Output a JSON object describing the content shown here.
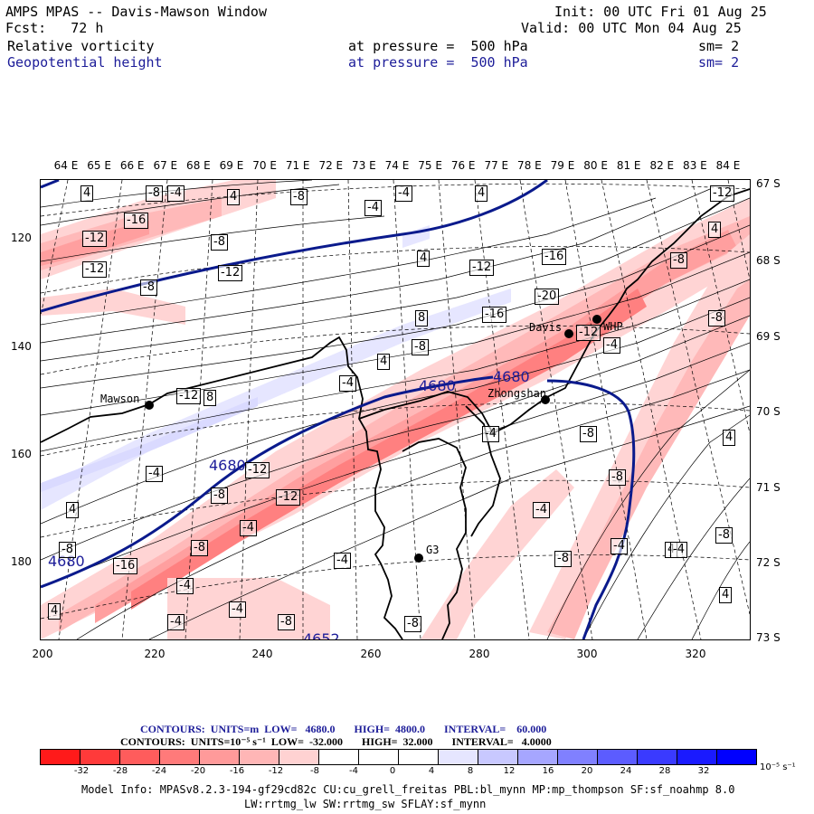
{
  "header": {
    "title": "AMPS MPAS -- Davis-Mawson Window",
    "init": "Init: 00 UTC Fri 01 Aug 25",
    "fcst": "Fcst:   72 h",
    "valid": "Valid: 00 UTC Mon 04 Aug 25",
    "field1": {
      "name": "Relative vorticity",
      "level": "at pressure =  500 hPa",
      "sm": "sm= 2"
    },
    "field2": {
      "name": "Geopotential height",
      "level": "at pressure =  500 hPa",
      "sm": "sm= 2"
    }
  },
  "axes": {
    "lon_labels": [
      "64 E",
      "65 E",
      "66 E",
      "67 E",
      "68 E",
      "69 E",
      "70 E",
      "71 E",
      "72 E",
      "73 E",
      "74 E",
      "75 E",
      "76 E",
      "77 E",
      "78 E",
      "79 E",
      "80 E",
      "81 E",
      "82 E",
      "83 E",
      "84 E"
    ],
    "x_ticks": [
      "200",
      "220",
      "240",
      "260",
      "280",
      "300",
      "320"
    ],
    "y_ticks": [
      "120",
      "140",
      "160",
      "180"
    ],
    "lat_labels": [
      "67 S",
      "68 S",
      "69 S",
      "70 S",
      "71 S",
      "72 S",
      "73 S"
    ]
  },
  "map": {
    "stations": [
      {
        "name": "Mawson"
      },
      {
        "name": "Davis"
      },
      {
        "name": "WHP"
      },
      {
        "name": "Zhongshan"
      },
      {
        "name": "G3"
      }
    ],
    "height_contour_labels": [
      "4680",
      "4680",
      "4680",
      "4680",
      "4652"
    ],
    "vorticity_labels": [
      "4",
      "-4",
      "-8",
      "-4",
      "4",
      "-12",
      "-16",
      "-8",
      "-12",
      "-8",
      "-12",
      "-12",
      "-8",
      "-8",
      "4",
      "4",
      "-12",
      "-20",
      "-16",
      "8",
      "-8",
      "4",
      "-16",
      "4",
      "-4",
      "-4",
      "-4",
      "8",
      "-12",
      "-12",
      "-8",
      "4",
      "-12",
      "-8",
      "-4",
      "-8",
      "-16",
      "-4",
      "-8",
      "-8",
      "-8",
      "-4",
      "4",
      "-4",
      "-8",
      "4",
      "-4",
      "-4",
      "-4",
      "-4",
      "-8",
      "-8",
      "-8",
      "4",
      "-12",
      "-4",
      "-4",
      "-8",
      "4"
    ]
  },
  "info": {
    "contours1": "CONTOURS:  UNITS=m  LOW=   4680.0       HIGH=  4800.0       INTERVAL=    60.000",
    "contours2": "CONTOURS:  UNITS=10⁻⁵ s⁻¹  LOW=  -32.000       HIGH=  32.000       INTERVAL=   4.0000",
    "model1": "Model Info: MPASv8.2.3-194-gf29cd82c CU:cu_grell_freitas PBL:bl_mynn MP:mp_thompson SF:sf_noahmp 8.0",
    "model2": "LW:rrtmg_lw SW:rrtmg_sw SFLAY:sf_mynn"
  },
  "colorbar": {
    "labels": [
      "-32",
      "-28",
      "-24",
      "-20",
      "-16",
      "-12",
      "-8",
      "-4",
      "0",
      "4",
      "8",
      "12",
      "16",
      "20",
      "24",
      "28",
      "32"
    ],
    "unit": "10⁻⁵ s⁻¹",
    "colors": [
      "#ff1a1a",
      "#ff3a3a",
      "#ff5c5c",
      "#ff7a7a",
      "#ff9a9a",
      "#ffb6b6",
      "#ffd2d2",
      "#ffffff",
      "#ffffff",
      "#ffffff",
      "#e6e6ff",
      "#c8c8ff",
      "#a6a6ff",
      "#8080ff",
      "#5c5cff",
      "#3a3aff",
      "#1a1aff",
      "#0000ff"
    ]
  }
}
